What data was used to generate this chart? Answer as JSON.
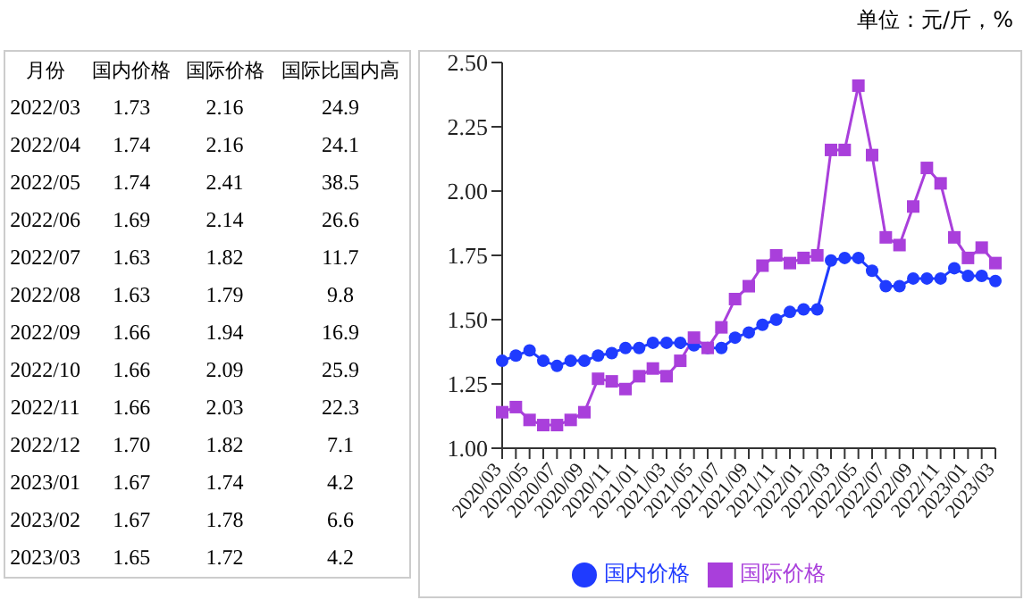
{
  "chart_data": [
    {
      "type": "other",
      "xlabel": "月份",
      "categories": [
        "2022/03",
        "2022/04",
        "2022/05",
        "2022/06",
        "2022/07",
        "2022/08",
        "2022/09",
        "2022/10",
        "2022/11",
        "2022/12",
        "2023/01",
        "2023/02",
        "2023/03"
      ],
      "data_labels": true,
      "series": [
        {
          "name": "国内价格",
          "values": [
            1.73,
            1.74,
            1.74,
            1.69,
            1.63,
            1.63,
            1.66,
            1.66,
            1.66,
            1.7,
            1.67,
            1.67,
            1.65
          ],
          "value_labels": [
            "1.73",
            "1.74",
            "1.74",
            "1.69",
            "1.63",
            "1.63",
            "1.66",
            "1.66",
            "1.66",
            "1.70",
            "1.67",
            "1.67",
            "1.65"
          ]
        },
        {
          "name": "国际价格",
          "values": [
            2.16,
            2.16,
            2.41,
            2.14,
            1.82,
            1.79,
            1.94,
            2.09,
            2.03,
            1.82,
            1.74,
            1.78,
            1.72
          ]
        },
        {
          "name": "国际比国内高",
          "values": [
            24.9,
            24.1,
            38.5,
            26.6,
            11.7,
            9.8,
            16.9,
            25.9,
            22.3,
            7.1,
            4.2,
            6.6,
            4.2
          ]
        }
      ]
    },
    {
      "type": "line",
      "annotations": [
        "单位：元/斤，%"
      ],
      "categories": [
        "2020/03",
        null,
        "2020/05",
        null,
        "2020/07",
        null,
        "2020/09",
        null,
        "2020/11",
        null,
        "2021/01",
        null,
        "2021/03",
        null,
        "2021/05",
        null,
        "2021/07",
        null,
        "2021/09",
        null,
        "2021/11",
        null,
        "2022/01",
        null,
        "2022/03",
        null,
        "2022/05",
        null,
        "2022/07",
        null,
        "2022/09",
        null,
        "2022/11",
        null,
        "2023/01",
        null,
        "2023/03"
      ],
      "ylim": [
        1.0,
        2.5
      ],
      "yticks": [
        {
          "value": 1.0,
          "label": "1.00"
        },
        {
          "value": 1.25,
          "label": "1.25"
        },
        {
          "value": 1.5,
          "label": "1.50"
        },
        {
          "value": 1.75,
          "label": "1.75"
        },
        {
          "value": 2.0,
          "label": "2.00"
        },
        {
          "value": 2.25,
          "label": "2.25"
        },
        {
          "value": 2.5,
          "label": "2.50"
        }
      ],
      "legend": "bottom",
      "grid": false,
      "series": [
        {
          "name": "国内价格",
          "color": "#1f3bff",
          "marker": "circle",
          "values": [
            1.34,
            1.36,
            1.38,
            1.34,
            1.32,
            1.34,
            1.34,
            1.36,
            1.37,
            1.39,
            1.39,
            1.41,
            1.41,
            1.41,
            1.4,
            1.39,
            1.39,
            1.43,
            1.45,
            1.48,
            1.5,
            1.53,
            1.54,
            1.54,
            1.73,
            1.74,
            1.74,
            1.69,
            1.63,
            1.63,
            1.66,
            1.66,
            1.66,
            1.7,
            1.67,
            1.67,
            1.65
          ]
        },
        {
          "name": "国际价格",
          "color": "#a93fdb",
          "marker": "square",
          "values": [
            1.14,
            1.16,
            1.11,
            1.09,
            1.09,
            1.11,
            1.14,
            1.27,
            1.26,
            1.23,
            1.28,
            1.31,
            1.28,
            1.34,
            1.43,
            1.39,
            1.47,
            1.58,
            1.63,
            1.71,
            1.75,
            1.72,
            1.74,
            1.75,
            2.16,
            2.16,
            2.41,
            2.14,
            1.82,
            1.79,
            1.94,
            2.09,
            2.03,
            1.82,
            1.74,
            1.78,
            1.72
          ]
        }
      ]
    }
  ]
}
